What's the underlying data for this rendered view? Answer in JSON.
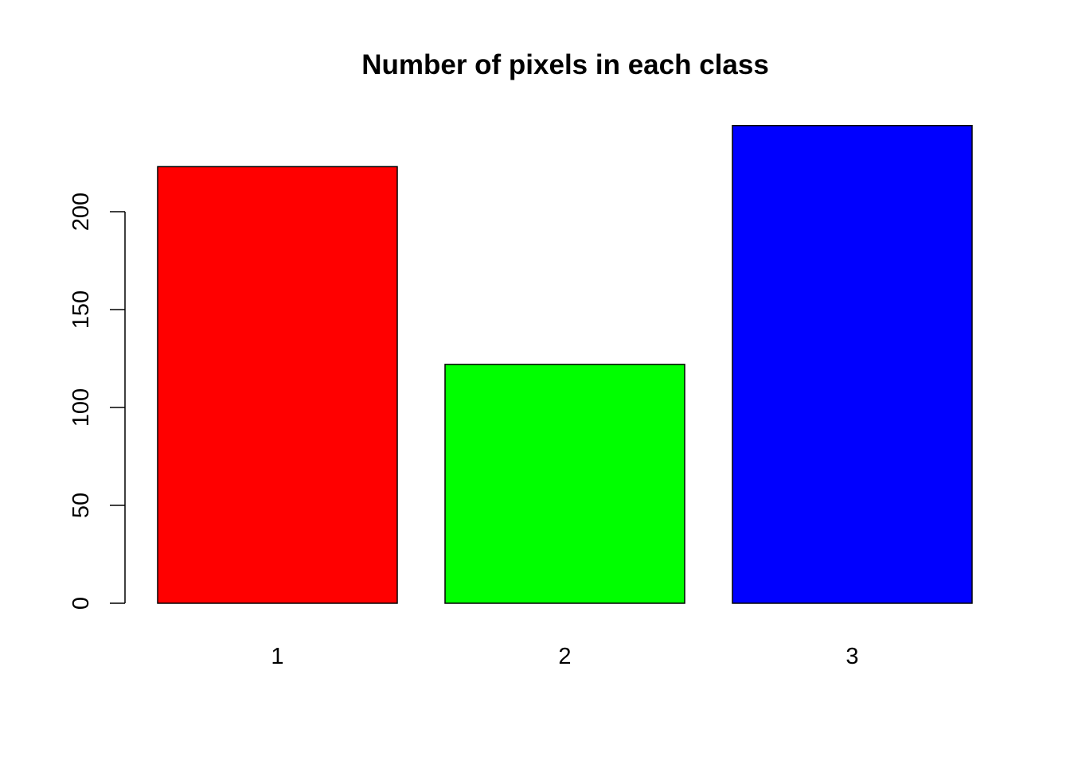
{
  "chart_data": {
    "type": "bar",
    "title": "Number of pixels in each class",
    "xlabel": "",
    "ylabel": "",
    "categories": [
      "1",
      "2",
      "3"
    ],
    "values": [
      223,
      122,
      244
    ],
    "colors": [
      "#FF0000",
      "#00FF00",
      "#0000FF"
    ],
    "yticks": [
      0,
      50,
      100,
      150,
      200
    ],
    "ytick_labels": [
      "0",
      "50",
      "100",
      "150",
      "200"
    ],
    "ylim": [
      0,
      244
    ],
    "grid": false,
    "legend": "none"
  }
}
